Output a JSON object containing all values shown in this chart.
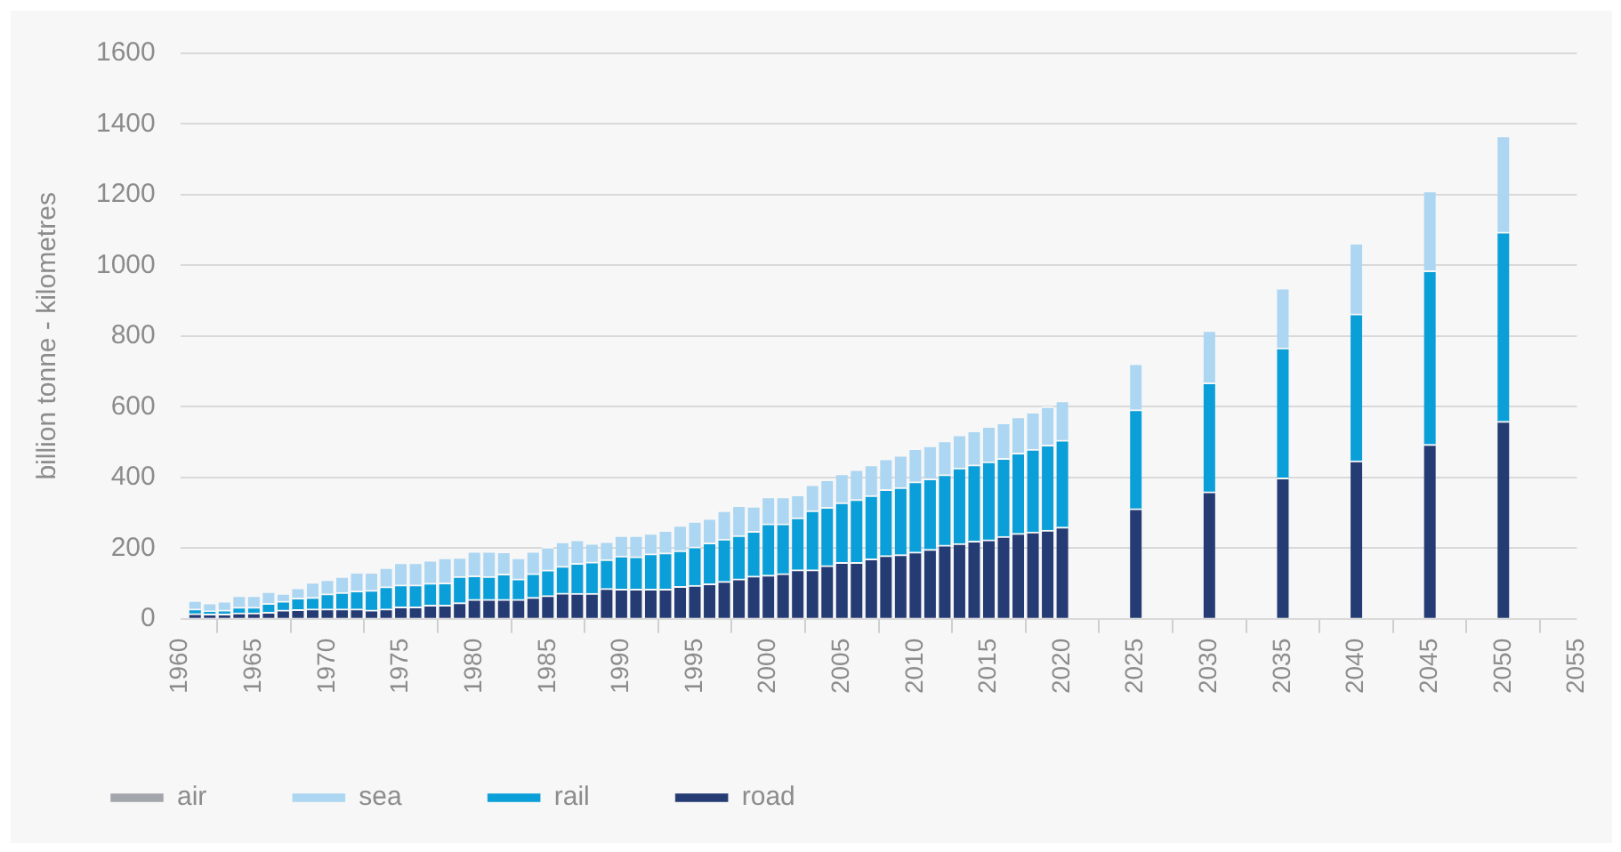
{
  "chart_data": {
    "type": "bar",
    "stacked": true,
    "ylabel": "billion tonne - kilometres",
    "x": [
      1961,
      1962,
      1963,
      1964,
      1965,
      1966,
      1967,
      1968,
      1969,
      1970,
      1971,
      1972,
      1973,
      1974,
      1975,
      1976,
      1977,
      1978,
      1979,
      1980,
      1981,
      1982,
      1983,
      1984,
      1985,
      1986,
      1987,
      1988,
      1989,
      1990,
      1991,
      1992,
      1993,
      1994,
      1995,
      1996,
      1997,
      1998,
      1999,
      2000,
      2001,
      2002,
      2003,
      2004,
      2005,
      2006,
      2007,
      2008,
      2009,
      2010,
      2011,
      2012,
      2013,
      2014,
      2015,
      2016,
      2017,
      2018,
      2019,
      2020,
      2025,
      2030,
      2035,
      2040,
      2045,
      2050
    ],
    "series": [
      {
        "name": "road",
        "color": "#253b73",
        "values": [
          14,
          13,
          13,
          16,
          16,
          18,
          24,
          25,
          27,
          27,
          27,
          27,
          24,
          27,
          33,
          33,
          38,
          38,
          45,
          54,
          54,
          54,
          54,
          60,
          65,
          72,
          71,
          71,
          85,
          83,
          83,
          83,
          83,
          91,
          94,
          98,
          105,
          112,
          120,
          123,
          127,
          138,
          138,
          150,
          159,
          159,
          169,
          178,
          181,
          188,
          196,
          208,
          212,
          219,
          223,
          232,
          241,
          245,
          250,
          259,
          311,
          359,
          398,
          446,
          493,
          558
        ]
      },
      {
        "name": "rail",
        "color": "#0a9fd8",
        "values": [
          13,
          9,
          11,
          16,
          16,
          25,
          25,
          33,
          33,
          43,
          47,
          51,
          56,
          63,
          62,
          62,
          62,
          63,
          74,
          67,
          65,
          72,
          58,
          67,
          72,
          76,
          85,
          89,
          82,
          94,
          92,
          100,
          103,
          101,
          109,
          116,
          120,
          123,
          127,
          145,
          141,
          147,
          167,
          165,
          169,
          178,
          179,
          187,
          190,
          199,
          199,
          199,
          214,
          216,
          221,
          221,
          227,
          234,
          241,
          246,
          280,
          308,
          368,
          416,
          491,
          536
        ]
      },
      {
        "name": "sea",
        "color": "#acd6f1",
        "values": [
          24,
          22,
          25,
          33,
          33,
          33,
          22,
          29,
          43,
          40,
          45,
          53,
          51,
          54,
          63,
          63,
          65,
          71,
          54,
          69,
          71,
          63,
          60,
          63,
          65,
          69,
          67,
          53,
          51,
          58,
          60,
          58,
          63,
          72,
          72,
          69,
          80,
          85,
          71,
          76,
          76,
          65,
          74,
          78,
          82,
          85,
          87,
          87,
          91,
          94,
          94,
          96,
          94,
          96,
          100,
          101,
          103,
          105,
          109,
          111,
          130,
          148,
          169,
          200,
          226,
          272
        ]
      },
      {
        "name": "air",
        "color": "#a3a6ad",
        "values": [
          null,
          null,
          null,
          null,
          null,
          null,
          null,
          null,
          null,
          null,
          null,
          null,
          null,
          null,
          null,
          null,
          null,
          null,
          null,
          null,
          null,
          null,
          null,
          null,
          null,
          null,
          null,
          null,
          null,
          null,
          null,
          null,
          null,
          null,
          null,
          null,
          null,
          null,
          null,
          null,
          null,
          null,
          null,
          null,
          null,
          null,
          null,
          null,
          null,
          null,
          null,
          null,
          null,
          null,
          null,
          null,
          null,
          null,
          null,
          null,
          null,
          null,
          null,
          null,
          null,
          null
        ]
      }
    ],
    "xlim": [
      1960,
      2055
    ],
    "xticks": [
      1960,
      1965,
      1970,
      1975,
      1980,
      1985,
      1990,
      1995,
      2000,
      2005,
      2010,
      2015,
      2020,
      2025,
      2030,
      2035,
      2040,
      2045,
      2050,
      2055
    ],
    "ylim": [
      0,
      1600
    ],
    "yticks": [
      0,
      200,
      400,
      600,
      800,
      1000,
      1200,
      1400,
      1600
    ],
    "grid": "y",
    "legend": "bottom left"
  }
}
